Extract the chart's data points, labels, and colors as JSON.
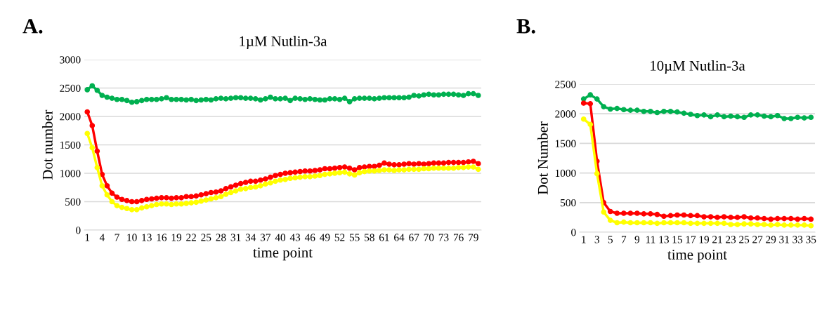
{
  "chart_data": [
    {
      "type": "line",
      "title": "1µM Nutlin-3a",
      "xlabel": "time point",
      "ylabel": "Dot number",
      "annotations": [
        "A."
      ],
      "categories": [
        "1",
        null,
        null,
        "4",
        null,
        null,
        "7",
        null,
        null,
        "10",
        null,
        null,
        "13",
        null,
        null,
        "16",
        null,
        null,
        "19",
        null,
        null,
        "22",
        null,
        null,
        "25",
        null,
        null,
        "28",
        null,
        null,
        "31",
        null,
        null,
        "34",
        null,
        null,
        "37",
        null,
        null,
        "40",
        null,
        null,
        "43",
        null,
        null,
        "46",
        null,
        null,
        "49",
        null,
        null,
        "52",
        null,
        null,
        "55",
        null,
        null,
        "58",
        null,
        null,
        "61",
        null,
        null,
        "64",
        null,
        null,
        "67",
        null,
        null,
        "70",
        null,
        null,
        "73",
        null,
        null,
        "76",
        null,
        null,
        "79",
        null
      ],
      "series": [
        {
          "color": "#00b050",
          "values": [
            2470,
            2540,
            2460,
            2370,
            2340,
            2320,
            2300,
            2300,
            2280,
            2250,
            2260,
            2280,
            2300,
            2300,
            2300,
            2310,
            2330,
            2300,
            2300,
            2300,
            2290,
            2300,
            2280,
            2290,
            2300,
            2290,
            2310,
            2320,
            2310,
            2320,
            2330,
            2330,
            2320,
            2320,
            2310,
            2290,
            2310,
            2340,
            2310,
            2310,
            2320,
            2280,
            2320,
            2310,
            2300,
            2310,
            2300,
            2290,
            2290,
            2310,
            2310,
            2300,
            2320,
            2260,
            2310,
            2320,
            2320,
            2320,
            2310,
            2320,
            2330,
            2330,
            2330,
            2330,
            2330,
            2340,
            2370,
            2360,
            2380,
            2390,
            2380,
            2380,
            2390,
            2390,
            2390,
            2380,
            2370,
            2400,
            2400,
            2370
          ]
        },
        {
          "color": "#ff0000",
          "values": [
            2080,
            1840,
            1390,
            980,
            780,
            650,
            580,
            540,
            520,
            500,
            500,
            520,
            540,
            550,
            560,
            570,
            570,
            560,
            570,
            570,
            590,
            590,
            600,
            620,
            640,
            660,
            670,
            690,
            730,
            760,
            790,
            820,
            840,
            860,
            860,
            880,
            900,
            930,
            960,
            980,
            1000,
            1010,
            1020,
            1030,
            1040,
            1040,
            1050,
            1060,
            1080,
            1080,
            1090,
            1100,
            1110,
            1090,
            1060,
            1100,
            1110,
            1120,
            1120,
            1140,
            1180,
            1160,
            1150,
            1150,
            1160,
            1170,
            1160,
            1170,
            1160,
            1170,
            1180,
            1180,
            1180,
            1190,
            1190,
            1190,
            1190,
            1200,
            1210,
            1170
          ]
        },
        {
          "color": "#ffff00",
          "values": [
            1700,
            1450,
            1100,
            780,
            620,
            500,
            430,
            400,
            380,
            360,
            360,
            390,
            410,
            430,
            450,
            460,
            460,
            450,
            460,
            460,
            470,
            480,
            490,
            510,
            530,
            550,
            570,
            590,
            630,
            660,
            690,
            720,
            730,
            750,
            760,
            780,
            810,
            830,
            860,
            880,
            890,
            910,
            920,
            930,
            940,
            940,
            950,
            960,
            980,
            990,
            1000,
            1010,
            1020,
            990,
            970,
            1010,
            1030,
            1040,
            1040,
            1050,
            1060,
            1060,
            1050,
            1060,
            1060,
            1070,
            1070,
            1070,
            1080,
            1080,
            1090,
            1090,
            1090,
            1090,
            1090,
            1100,
            1100,
            1110,
            1110,
            1070
          ]
        }
      ],
      "ylim": [
        0,
        3000
      ],
      "yticks": [
        0,
        500,
        1000,
        1500,
        2000,
        2500,
        3000
      ],
      "grid": "y",
      "legend": false,
      "marker": "circle",
      "line_style": "solid"
    },
    {
      "type": "line",
      "title": "10µM Nutlin-3a",
      "xlabel": "time point",
      "ylabel": "Dot Number",
      "annotations": [
        "B."
      ],
      "categories": [
        "1",
        null,
        "3",
        null,
        "5",
        null,
        "7",
        null,
        "9",
        null,
        "11",
        null,
        "13",
        null,
        "15",
        null,
        "17",
        null,
        "19",
        null,
        "21",
        null,
        "23",
        null,
        "25",
        null,
        "27",
        null,
        "29",
        null,
        "31",
        null,
        "33",
        null,
        "35"
      ],
      "series": [
        {
          "color": "#00b050",
          "values": [
            2250,
            2320,
            2250,
            2120,
            2080,
            2090,
            2070,
            2060,
            2060,
            2040,
            2040,
            2020,
            2040,
            2040,
            2030,
            2010,
            1990,
            1970,
            1980,
            1950,
            1980,
            1950,
            1960,
            1950,
            1940,
            1980,
            1980,
            1960,
            1950,
            1970,
            1920,
            1920,
            1940,
            1930,
            1940
          ]
        },
        {
          "color": "#ff0000",
          "values": [
            2180,
            2170,
            1200,
            500,
            350,
            320,
            320,
            320,
            320,
            310,
            310,
            300,
            270,
            280,
            290,
            290,
            280,
            280,
            260,
            260,
            250,
            260,
            250,
            250,
            260,
            240,
            240,
            230,
            220,
            230,
            230,
            230,
            220,
            230,
            220
          ]
        },
        {
          "color": "#ffff00",
          "values": [
            1910,
            1820,
            990,
            340,
            200,
            160,
            170,
            160,
            160,
            160,
            160,
            150,
            160,
            160,
            160,
            160,
            150,
            150,
            150,
            150,
            150,
            150,
            130,
            130,
            140,
            140,
            130,
            130,
            120,
            130,
            120,
            120,
            120,
            120,
            110
          ]
        }
      ],
      "ylim": [
        0,
        2500
      ],
      "yticks": [
        0,
        500,
        1000,
        1500,
        2000,
        2500
      ],
      "grid": "y",
      "legend": false,
      "marker": "circle",
      "line_style": "solid"
    }
  ]
}
